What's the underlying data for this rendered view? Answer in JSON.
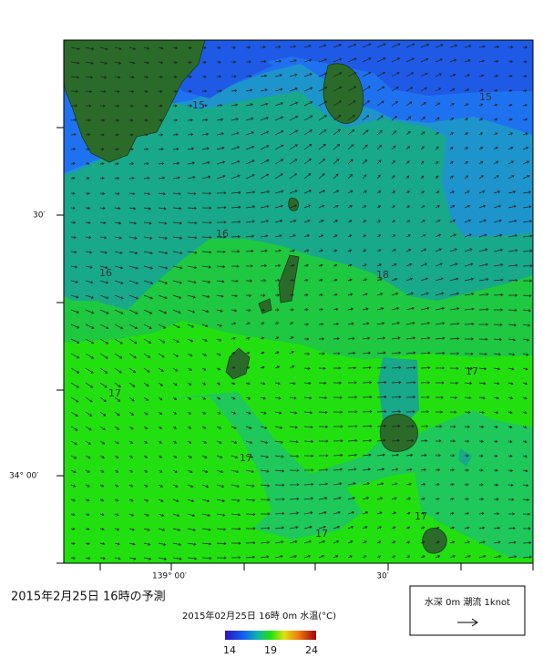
{
  "map": {
    "title": "2015年2月25日  16時の予測",
    "subtitle": "2015年02月25日 16時 0m 水温(°C)",
    "lat_labels": [
      "30′",
      "34° 00′"
    ],
    "lon_labels": [
      "139° 00′",
      "30′"
    ],
    "contour_labels": [
      "15",
      "15",
      "16",
      "16",
      "18",
      "17",
      "17",
      "17",
      "17",
      "17"
    ],
    "colorbar_labels": [
      "14",
      "19",
      "24"
    ],
    "legend": "水深 0m  潮流  1knot"
  }
}
